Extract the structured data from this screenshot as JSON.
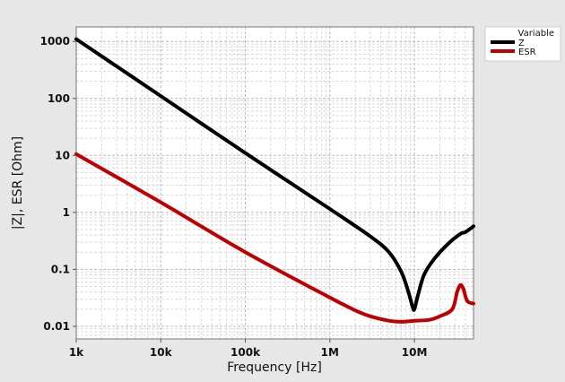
{
  "chart_data": {
    "type": "line",
    "xlabel": "Frequency [Hz]",
    "ylabel": "|Z|, ESR [Ohm]",
    "x_scale": "log",
    "y_scale": "log",
    "xlim": [
      1000,
      50000000
    ],
    "ylim": [
      0.006,
      1800
    ],
    "x_ticks": [
      {
        "value": 1000,
        "label": "1k"
      },
      {
        "value": 10000,
        "label": "10k"
      },
      {
        "value": 100000,
        "label": "100k"
      },
      {
        "value": 1000000,
        "label": "1M"
      },
      {
        "value": 10000000,
        "label": "10M"
      }
    ],
    "y_ticks": [
      {
        "value": 0.01,
        "label": "0.01"
      },
      {
        "value": 0.1,
        "label": "0.1"
      },
      {
        "value": 1,
        "label": "1"
      },
      {
        "value": 10,
        "label": "10"
      },
      {
        "value": 100,
        "label": "100"
      },
      {
        "value": 1000,
        "label": "1000"
      }
    ],
    "grid": true,
    "legend": {
      "title": "Variable",
      "position": "top-right"
    },
    "series": [
      {
        "name": "Z",
        "color": "#000000",
        "points": [
          [
            1000,
            1100
          ],
          [
            10000,
            110
          ],
          [
            100000,
            11
          ],
          [
            1000000,
            1.15
          ],
          [
            3000000,
            0.38
          ],
          [
            5000000,
            0.2
          ],
          [
            7000000,
            0.09
          ],
          [
            8500000,
            0.04
          ],
          [
            9500000,
            0.022
          ],
          [
            10000000,
            0.02
          ],
          [
            11000000,
            0.035
          ],
          [
            13000000,
            0.08
          ],
          [
            17000000,
            0.15
          ],
          [
            25000000,
            0.28
          ],
          [
            35000000,
            0.42
          ],
          [
            40000000,
            0.45
          ],
          [
            50000000,
            0.57
          ]
        ]
      },
      {
        "name": "ESR",
        "color": "#c00000",
        "points": [
          [
            1000,
            10.5
          ],
          [
            10000,
            1.5
          ],
          [
            100000,
            0.2
          ],
          [
            1000000,
            0.032
          ],
          [
            2000000,
            0.019
          ],
          [
            3000000,
            0.015
          ],
          [
            5000000,
            0.0125
          ],
          [
            7000000,
            0.012
          ],
          [
            10000000,
            0.0125
          ],
          [
            15000000,
            0.013
          ],
          [
            20000000,
            0.015
          ],
          [
            28000000,
            0.02
          ],
          [
            32000000,
            0.04
          ],
          [
            35000000,
            0.053
          ],
          [
            38000000,
            0.045
          ],
          [
            42000000,
            0.028
          ],
          [
            50000000,
            0.025
          ]
        ]
      }
    ]
  }
}
